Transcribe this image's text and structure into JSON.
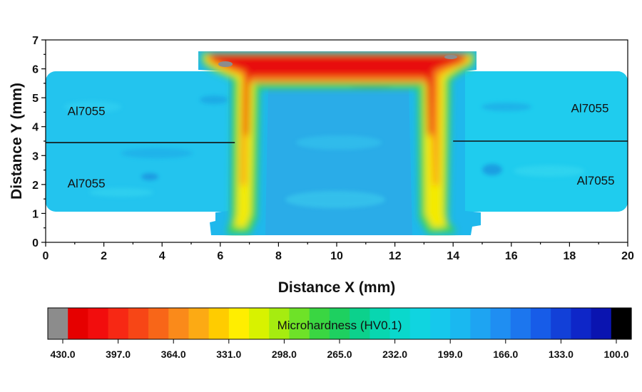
{
  "chart_data": {
    "type": "heatmap",
    "xlabel": "Distance X (mm)",
    "ylabel": "Distance Y (mm)",
    "xlim": [
      0,
      20
    ],
    "ylim": [
      0,
      7
    ],
    "xticks": [
      "0",
      "2",
      "4",
      "6",
      "8",
      "10",
      "12",
      "14",
      "16",
      "18",
      "20"
    ],
    "yticks": [
      "0",
      "1",
      "2",
      "3",
      "4",
      "5",
      "6",
      "7"
    ],
    "annotations": [
      {
        "text": "Al7055",
        "x": 1.4,
        "y": 4.4
      },
      {
        "text": "Al7055",
        "x": 1.4,
        "y": 1.9
      },
      {
        "text": "Al7055",
        "x": 18.7,
        "y": 4.5
      },
      {
        "text": "Al7055",
        "x": 18.9,
        "y": 2.0
      }
    ],
    "interface_lines": [
      {
        "x": [
          0,
          6.5
        ],
        "y": [
          3.45,
          3.45
        ]
      },
      {
        "x": [
          14.0,
          20.0
        ],
        "y": [
          3.5,
          3.5
        ]
      }
    ],
    "regions": {
      "base_plate": {
        "x": [
          0,
          20
        ],
        "y": [
          1.1,
          5.9
        ],
        "hardness_hv": 190
      },
      "nugget_top_band": {
        "x": [
          5.3,
          14.9
        ],
        "y": [
          5.8,
          6.6
        ],
        "hardness_hv": 410
      },
      "left_leg": {
        "x": [
          6.6,
          7.4
        ],
        "y": [
          0.3,
          5.6
        ],
        "hardness_hv": 330
      },
      "right_leg": {
        "x": [
          12.7,
          13.6
        ],
        "y": [
          0.3,
          5.6
        ],
        "hardness_hv": 330
      },
      "inner_core": {
        "x": [
          7.6,
          12.6
        ],
        "y": [
          0.2,
          5.5
        ],
        "hardness_hv": 200
      }
    },
    "colorbar": {
      "title": "Microhardness (HV0.1)",
      "min": 100.0,
      "max": 430.0,
      "tick_labels": [
        "430.0",
        "397.0",
        "364.0",
        "331.0",
        "298.0",
        "265.0",
        "232.0",
        "199.0",
        "166.0",
        "133.0",
        "100.0"
      ],
      "colors": [
        "#8c8c8c",
        "#e60000",
        "#f20d0d",
        "#f72814",
        "#f74616",
        "#f86618",
        "#fa8a1a",
        "#fcaa14",
        "#ffcc00",
        "#ffee00",
        "#d8f200",
        "#a6ec10",
        "#6ee228",
        "#3ad642",
        "#1ed060",
        "#0cd18c",
        "#08d6b0",
        "#0ad8cc",
        "#10d4e0",
        "#16c8ec",
        "#1ab8f0",
        "#1ea4f2",
        "#1f8ef2",
        "#1c76ee",
        "#175ce8",
        "#1240d8",
        "#0e26c8",
        "#0a14b0",
        "#000000"
      ]
    }
  }
}
